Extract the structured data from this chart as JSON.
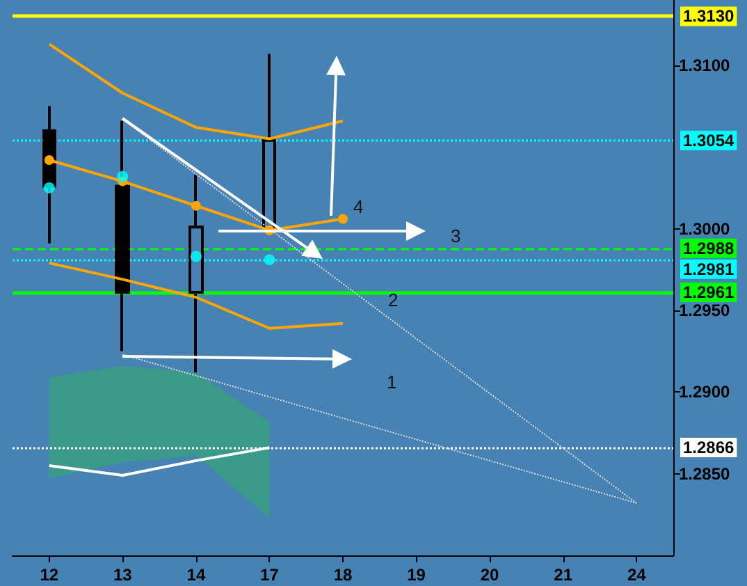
{
  "chart_data": {
    "type": "candlestick",
    "categories": [
      "12",
      "13",
      "14",
      "17",
      "18",
      "19",
      "20",
      "21",
      "24"
    ],
    "ohlc": [
      [
        1.306,
        1.3075,
        1.2991,
        1.3026
      ],
      [
        1.3026,
        1.3066,
        1.2925,
        1.2961
      ],
      [
        1.2961,
        1.3033,
        1.2912,
        1.3001
      ],
      [
        1.3001,
        1.3107,
        1.3,
        1.3054
      ],
      null,
      null,
      null,
      null,
      null
    ],
    "series": [
      {
        "type": "line",
        "color": "#ffa500",
        "marker": "none",
        "values": [
          1.3113,
          1.3083,
          1.3062,
          1.3055,
          1.3066,
          null,
          null,
          null,
          null
        ]
      },
      {
        "type": "line",
        "color": "#ffa500",
        "marker": "circle",
        "values": [
          1.3042,
          1.3029,
          1.3014,
          1.2999,
          1.3006,
          null,
          null,
          null,
          null
        ]
      },
      {
        "type": "line",
        "color": "#ffa500",
        "marker": "none",
        "values": [
          1.2979,
          1.2969,
          1.2958,
          1.2939,
          1.2942,
          null,
          null,
          null,
          null
        ]
      },
      {
        "type": "line",
        "color": "#ffffff",
        "marker": "none",
        "values": [
          1.2855,
          1.2849,
          1.2858,
          1.2866,
          null,
          null,
          null,
          null,
          null
        ],
        "lower": [
          1.2847,
          1.2857,
          1.2861,
          1.2823,
          null,
          null,
          null,
          null,
          null
        ],
        "upper": [
          1.2909,
          1.2916,
          1.2912,
          1.2882,
          null,
          null,
          null,
          null,
          null
        ]
      },
      {
        "type": "scatter",
        "color": "#00ffff",
        "marker": "circle",
        "values": [
          1.3025,
          1.3032,
          1.2983,
          1.2981,
          null,
          null,
          null,
          null,
          null
        ]
      },
      {
        "type": "line",
        "color": "#dddddd",
        "marker": "none",
        "line_style": "dotted",
        "values": [
          null,
          1.3067,
          null,
          null,
          null,
          null,
          null,
          null,
          1.2832
        ]
      },
      {
        "type": "line",
        "color": "#dddddd",
        "marker": "none",
        "line_style": "dotted",
        "values": [
          null,
          1.2923,
          null,
          null,
          null,
          null,
          null,
          null,
          1.2832
        ]
      }
    ],
    "ylim": [
      1.28,
      1.314
    ],
    "yticks": [
      {
        "value": 1.285,
        "label": "1.2850"
      },
      {
        "value": 1.29,
        "label": "1.2900"
      },
      {
        "value": 1.295,
        "label": "1.2950"
      },
      {
        "value": 1.3,
        "label": "1.3000"
      },
      {
        "value": 1.31,
        "label": "1.3100"
      }
    ],
    "ref_lines": [
      {
        "axis": "y",
        "value": 1.313,
        "label": "1.3130",
        "color": "#ffff00",
        "line_style": "solid"
      },
      {
        "axis": "y",
        "value": 1.3054,
        "label": "1.3054",
        "color": "#00ffff",
        "line_style": "dotted"
      },
      {
        "axis": "y",
        "value": 1.2988,
        "label": "1.2988",
        "color": "#00ff00",
        "line_style": "dashed"
      },
      {
        "axis": "y",
        "value": 1.2981,
        "label": "1.2981",
        "color": "#00ffff",
        "line_style": "dotted"
      },
      {
        "axis": "y",
        "value": 1.2961,
        "label": "1.2961",
        "color": "#00ff00",
        "line_style": "solid"
      },
      {
        "axis": "y",
        "value": 1.2866,
        "label": "1.2866",
        "color": "#ffffff",
        "line_style": "dotted"
      }
    ],
    "annotations": [
      "1",
      "2",
      "3",
      "4"
    ],
    "grid": false
  }
}
